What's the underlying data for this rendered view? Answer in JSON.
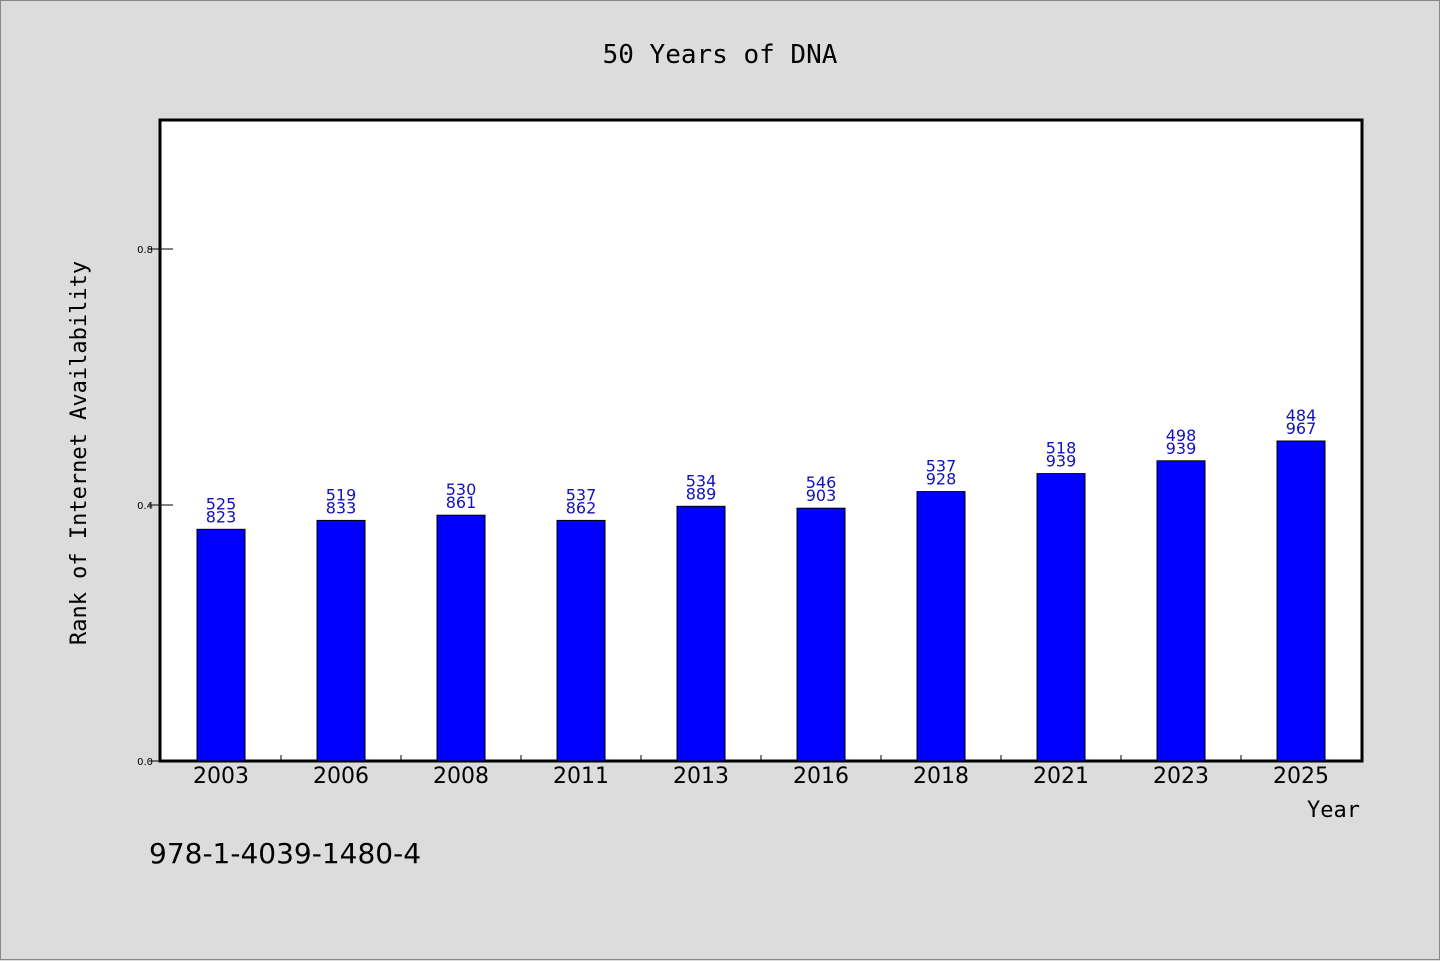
{
  "chart_data": {
    "type": "bar",
    "title": "50 Years of DNA",
    "xlabel": "Year",
    "ylabel": "Rank of Internet Availability",
    "categories": [
      "2003",
      "2006",
      "2008",
      "2011",
      "2013",
      "2016",
      "2018",
      "2021",
      "2023",
      "2025"
    ],
    "values": [
      0.362,
      0.376,
      0.384,
      0.376,
      0.398,
      0.395,
      0.421,
      0.449,
      0.469,
      0.5
    ],
    "bar_labels": [
      [
        "525",
        "823"
      ],
      [
        "519",
        "833"
      ],
      [
        "530",
        "861"
      ],
      [
        "537",
        "862"
      ],
      [
        "534",
        "889"
      ],
      [
        "546",
        "903"
      ],
      [
        "537",
        "928"
      ],
      [
        "518",
        "939"
      ],
      [
        "498",
        "939"
      ],
      [
        "484",
        "967"
      ]
    ],
    "yticks": [
      "0.0",
      "0.4",
      "0.8"
    ],
    "ylim": [
      0,
      1.0
    ],
    "grid": false,
    "colors": {
      "bar": "#0000ff",
      "bar_label": "#1010c0",
      "background": "#dcdcdc",
      "plot_background": "#ffffff"
    }
  },
  "footnote": "978-1-4039-1480-4"
}
